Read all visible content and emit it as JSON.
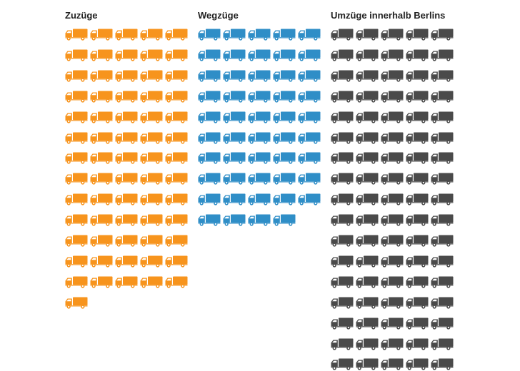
{
  "chart_data": {
    "type": "pictogram",
    "unit_icon": "truck-icon",
    "icons_per_row": 5,
    "series": [
      {
        "name": "Zuzüge",
        "icons": 66,
        "color": "#f7941d"
      },
      {
        "name": "Wegzüge",
        "icons": 49,
        "color": "#2f8ec7"
      },
      {
        "name": "Umzüge innerhalb Berlins",
        "icons": 85,
        "color": "#4a4a4a"
      }
    ]
  }
}
